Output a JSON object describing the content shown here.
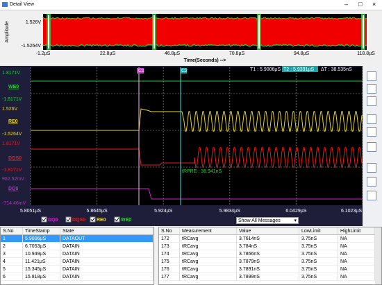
{
  "window": {
    "title": "Detail View"
  },
  "overview": {
    "y_label": "Amplitude",
    "y_ticks": [
      "1.526V",
      "-1.5264V"
    ],
    "x_ticks": [
      "-1.2µS",
      "22.8µS",
      "46.8µS",
      "70.8µS",
      "94.8µS",
      "118.8µS"
    ],
    "x_title": "Time(Seconds) -->"
  },
  "main": {
    "channels": [
      {
        "name": "WE0",
        "max": "1.8171V",
        "min": "-1.8171V"
      },
      {
        "name": "RE0",
        "max": "1.526V",
        "min": "-1.5264V"
      },
      {
        "name": "DQS0",
        "max": "1.8171V",
        "min": "-1.8171V"
      },
      {
        "name": "DQ0",
        "max": "962.52mV",
        "min": "-714.46mV"
      }
    ],
    "cursors": {
      "c1": "C1",
      "c2": "C2",
      "t1": "T1 : 5.9006µS",
      "t2": "T2 : 5.9391µS",
      "dt": "ΔT : 38.535nS"
    },
    "annotation": "tRPRE : 38.941nS",
    "x_ticks": [
      "5.8051µS",
      "5.8645µS",
      "5.924µS",
      "5.9834µS",
      "6.0429µS",
      "6.1023µS"
    ]
  },
  "legend": [
    "DQ0",
    "DQS0",
    "RE0",
    "WE0"
  ],
  "filter": "Show All Messages",
  "state_table": {
    "headers": [
      "S.No",
      "TimeStamp",
      "State"
    ],
    "rows": [
      [
        "1",
        "5.9006µS",
        "DATAOUT"
      ],
      [
        "2",
        "6.7053µS",
        "DATAIN"
      ],
      [
        "3",
        "10.949µS",
        "DATAIN"
      ],
      [
        "4",
        "11.421µS",
        "DATAIN"
      ],
      [
        "5",
        "15.345µS",
        "DATAIN"
      ],
      [
        "6",
        "15.818µS",
        "DATAIN"
      ]
    ]
  },
  "measurement_table": {
    "headers": [
      "S.No",
      "Measurement",
      "Value",
      "LowLimit",
      "HighLimit"
    ],
    "rows": [
      [
        "172",
        "tRCavg",
        "3.7614nS",
        "3.75nS",
        "NA"
      ],
      [
        "173",
        "tRCavg",
        "3.784nS",
        "3.75nS",
        "NA"
      ],
      [
        "174",
        "tRCavg",
        "3.7866nS",
        "3.75nS",
        "NA"
      ],
      [
        "175",
        "tRCavg",
        "3.7879nS",
        "3.75nS",
        "NA"
      ],
      [
        "176",
        "tRCavg",
        "3.7891nS",
        "3.75nS",
        "NA"
      ],
      [
        "177",
        "tRCavg",
        "3.7899nS",
        "3.75nS",
        "NA"
      ]
    ]
  }
}
